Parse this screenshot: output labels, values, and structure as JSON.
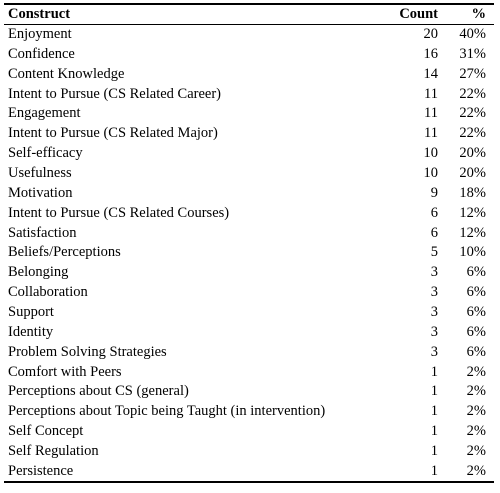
{
  "table": {
    "header": [
      "Construct",
      "Count",
      "%"
    ],
    "rows": [
      [
        "Enjoyment",
        "20",
        "40%"
      ],
      [
        "Confidence",
        "16",
        "31%"
      ],
      [
        "Content Knowledge",
        "14",
        "27%"
      ],
      [
        "Intent to Pursue (CS Related Career)",
        "11",
        "22%"
      ],
      [
        "Engagement",
        "11",
        "22%"
      ],
      [
        "Intent to Pursue (CS Related Major)",
        "11",
        "22%"
      ],
      [
        "Self-efficacy",
        "10",
        "20%"
      ],
      [
        "Usefulness",
        "10",
        "20%"
      ],
      [
        "Motivation",
        "9",
        "18%"
      ],
      [
        "Intent to Pursue (CS Related Courses)",
        "6",
        "12%"
      ],
      [
        "Satisfaction",
        "6",
        "12%"
      ],
      [
        "Beliefs/Perceptions",
        "5",
        "10%"
      ],
      [
        "Belonging",
        "3",
        "6%"
      ],
      [
        "Collaboration",
        "3",
        "6%"
      ],
      [
        "Support",
        "3",
        "6%"
      ],
      [
        "Identity",
        "3",
        "6%"
      ],
      [
        "Problem Solving Strategies",
        "3",
        "6%"
      ],
      [
        "Comfort with Peers",
        "1",
        "2%"
      ],
      [
        "Perceptions about CS (general)",
        "1",
        "2%"
      ],
      [
        "Perceptions about Topic being Taught (in intervention)",
        "1",
        "2%"
      ],
      [
        "Self Concept",
        "1",
        "2%"
      ],
      [
        "Self Regulation",
        "1",
        "2%"
      ],
      [
        "Persistence",
        "1",
        "2%"
      ]
    ]
  }
}
